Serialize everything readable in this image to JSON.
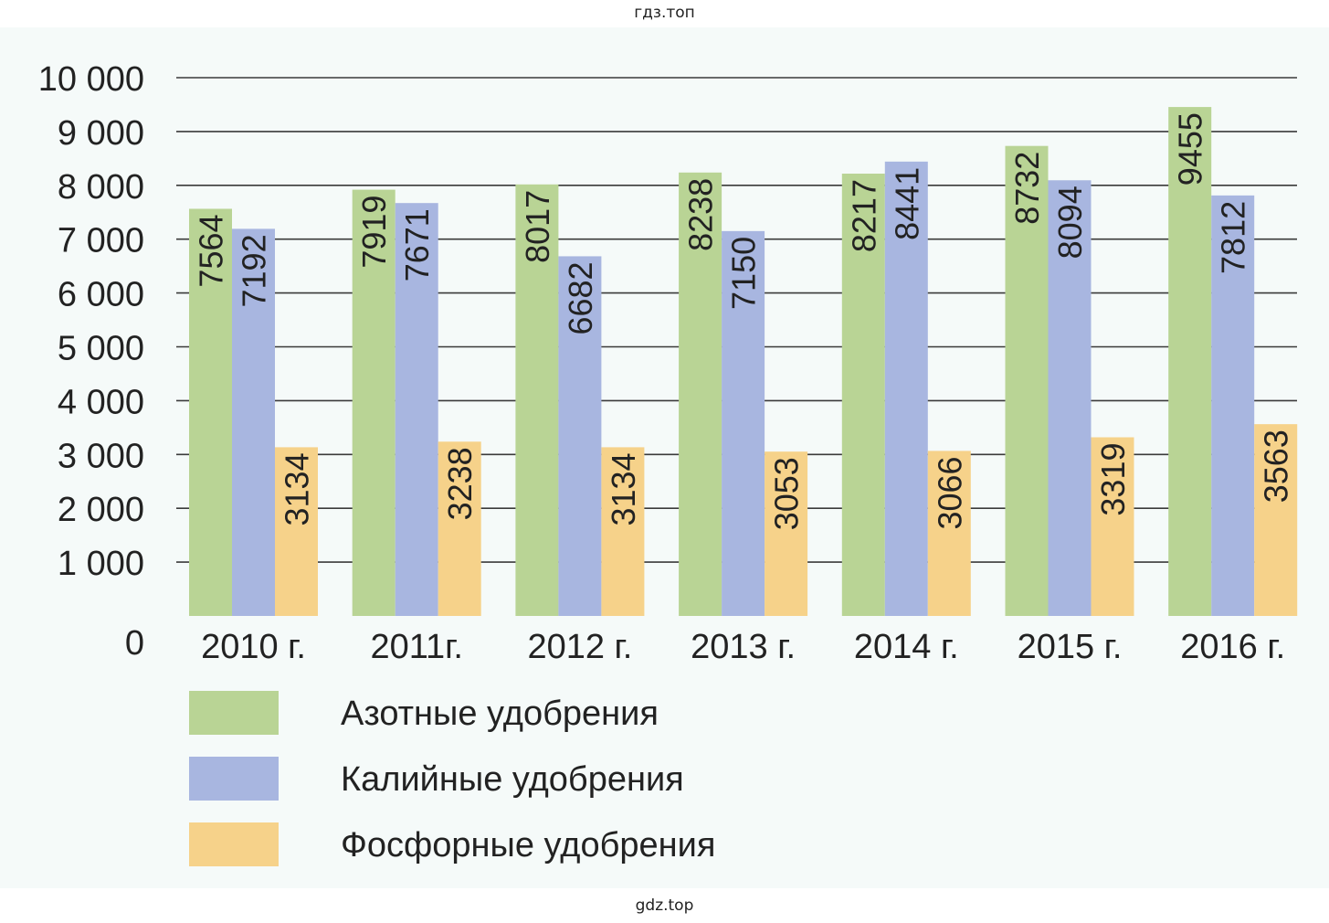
{
  "watermarks": {
    "top": "гдз.топ",
    "bottom": "gdz.top"
  },
  "colors": {
    "nitrogen": "#b9d495",
    "potassium": "#a8b6e0",
    "phosphorus": "#f6d28a",
    "grid": "#3a3a3a",
    "text": "#222222",
    "background": "#f5faf9"
  },
  "chart_data": {
    "type": "bar",
    "categories": [
      "2010 г.",
      "2011г.",
      "2012 г.",
      "2013 г.",
      "2014 г.",
      "2015 г.",
      "2016 г."
    ],
    "series": [
      {
        "name": "Азотные удобрения",
        "values": [
          7564,
          7919,
          8017,
          8238,
          8217,
          8732,
          9455
        ]
      },
      {
        "name": "Калийные удобрения",
        "values": [
          7192,
          7671,
          6682,
          7150,
          8441,
          8094,
          7812
        ]
      },
      {
        "name": "Фосфорные удобрения",
        "values": [
          3134,
          3238,
          3134,
          3053,
          3066,
          3319,
          3563
        ]
      }
    ],
    "y_ticks": [
      {
        "value": 0,
        "label": "0"
      },
      {
        "value": 1000,
        "label": "1 000"
      },
      {
        "value": 2000,
        "label": "2 000"
      },
      {
        "value": 3000,
        "label": "3 000"
      },
      {
        "value": 4000,
        "label": "4 000"
      },
      {
        "value": 5000,
        "label": "5 000"
      },
      {
        "value": 6000,
        "label": "6 000"
      },
      {
        "value": 7000,
        "label": "7 000"
      },
      {
        "value": 8000,
        "label": "8 000"
      },
      {
        "value": 9000,
        "label": "9 000"
      },
      {
        "value": 10000,
        "label": "10 000"
      }
    ],
    "ylim": [
      0,
      10000
    ],
    "grid": true,
    "data_labels": "inside bars, rotated vertical",
    "legend_position": "bottom-left"
  }
}
